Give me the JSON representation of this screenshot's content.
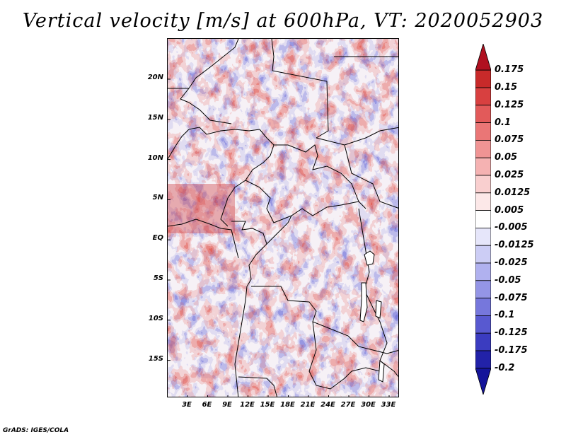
{
  "title": "Vertical velocity [m/s] at 600hPa, VT: 2020052903",
  "credit": "GrADS: IGES/COLA",
  "map": {
    "lat_labels": [
      "20N",
      "15N",
      "10N",
      "5N",
      "EQ",
      "5S",
      "10S",
      "15S"
    ],
    "lon_labels": [
      "3E",
      "6E",
      "9E",
      "12E",
      "15E",
      "18E",
      "21E",
      "24E",
      "27E",
      "30E",
      "33E"
    ]
  },
  "colorbar": {
    "labels": [
      "0.175",
      "0.15",
      "0.125",
      "0.1",
      "0.075",
      "0.05",
      "0.025",
      "0.0125",
      "0.005",
      "-0.005",
      "-0.0125",
      "-0.025",
      "-0.05",
      "-0.075",
      "-0.1",
      "-0.125",
      "-0.175",
      "-0.2"
    ],
    "colors": [
      "#b01020",
      "#c82a2a",
      "#d84040",
      "#e25a5a",
      "#ea7676",
      "#f09494",
      "#f5b2b2",
      "#f9cfcf",
      "#fce8e8",
      "#ffffff",
      "#e6e6fa",
      "#cccdf5",
      "#b0b1ef",
      "#9495e6",
      "#7677dc",
      "#5859d0",
      "#3b3cc0",
      "#2222a8",
      "#14149a"
    ]
  }
}
